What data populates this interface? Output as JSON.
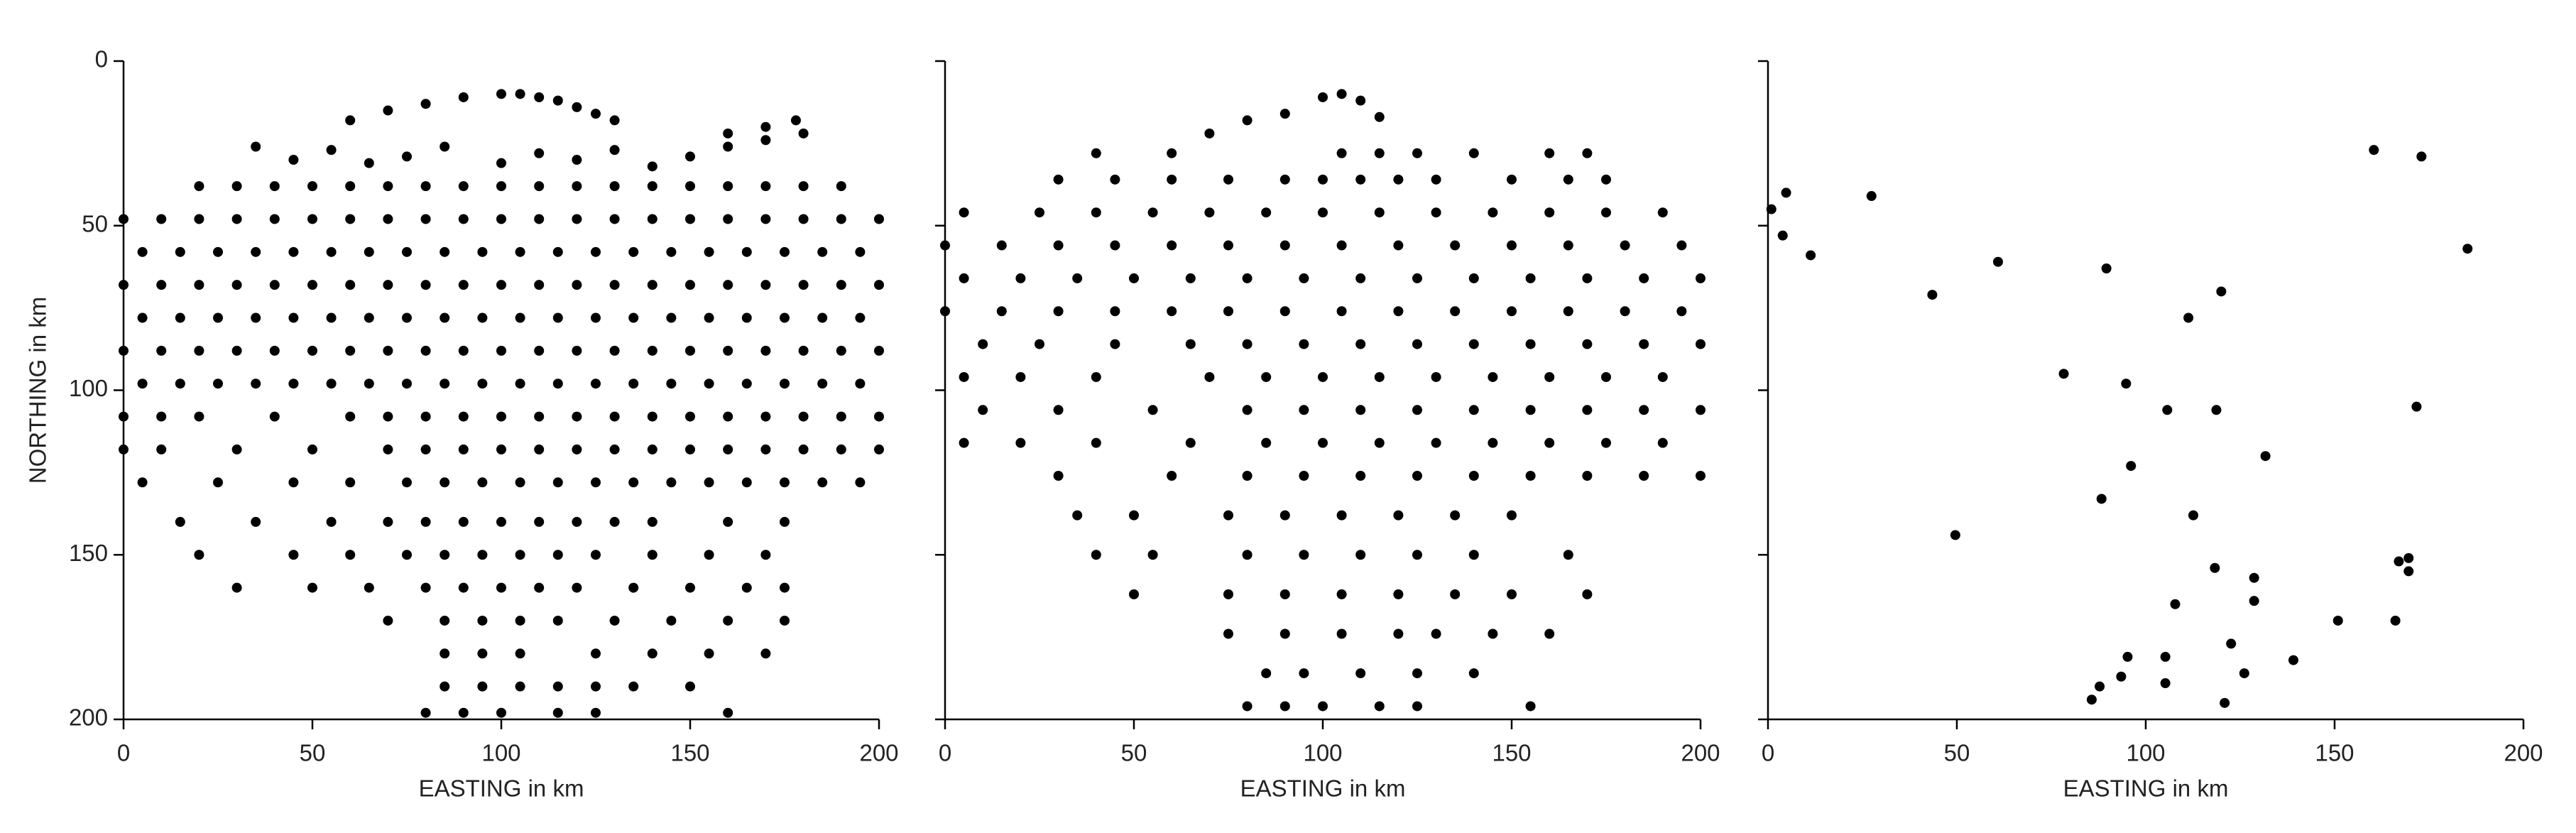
{
  "chart_data": [
    {
      "type": "scatter",
      "xlabel": "EASTING in km",
      "ylabel": "NORTHING in km",
      "color": "#000000",
      "xlim": [
        0,
        200
      ],
      "xticks": [
        0,
        50,
        100,
        150,
        200
      ],
      "ylim": [
        0,
        200
      ],
      "yticks": [
        0,
        50,
        100,
        150,
        200
      ],
      "invert_y": true,
      "show_ytick_labels": true,
      "x": [
        60,
        70,
        80,
        90,
        100,
        105,
        110,
        115,
        120,
        125,
        130,
        160,
        170,
        178,
        35,
        45,
        55,
        65,
        75,
        85,
        100,
        110,
        120,
        130,
        140,
        150,
        160,
        170,
        180,
        20,
        30,
        40,
        50,
        60,
        70,
        80,
        90,
        100,
        110,
        120,
        130,
        140,
        150,
        160,
        170,
        180,
        190,
        0,
        10,
        20,
        30,
        40,
        50,
        60,
        70,
        80,
        90,
        100,
        110,
        120,
        130,
        140,
        150,
        160,
        170,
        180,
        190,
        200,
        5,
        15,
        25,
        35,
        45,
        55,
        65,
        75,
        85,
        95,
        105,
        115,
        125,
        135,
        145,
        155,
        165,
        175,
        185,
        195,
        0,
        10,
        20,
        30,
        40,
        50,
        60,
        70,
        80,
        90,
        100,
        110,
        120,
        130,
        140,
        150,
        160,
        170,
        180,
        190,
        200,
        5,
        15,
        25,
        35,
        45,
        55,
        65,
        75,
        85,
        95,
        105,
        115,
        125,
        135,
        145,
        155,
        165,
        175,
        185,
        195,
        0,
        10,
        20,
        30,
        40,
        50,
        60,
        70,
        80,
        90,
        100,
        110,
        120,
        130,
        140,
        150,
        160,
        170,
        180,
        190,
        200,
        5,
        15,
        25,
        35,
        45,
        55,
        65,
        75,
        85,
        95,
        105,
        115,
        125,
        135,
        145,
        155,
        165,
        175,
        185,
        195,
        0,
        10,
        20,
        40,
        60,
        70,
        80,
        90,
        100,
        110,
        120,
        130,
        140,
        150,
        160,
        170,
        180,
        190,
        200,
        0,
        10,
        30,
        50,
        70,
        80,
        90,
        100,
        110,
        120,
        130,
        140,
        150,
        160,
        170,
        180,
        190,
        200,
        5,
        25,
        45,
        60,
        75,
        85,
        95,
        105,
        115,
        125,
        135,
        145,
        155,
        165,
        175,
        185,
        195,
        15,
        35,
        55,
        70,
        80,
        90,
        100,
        110,
        120,
        130,
        140,
        160,
        175,
        20,
        45,
        60,
        75,
        85,
        95,
        105,
        115,
        125,
        140,
        155,
        170,
        30,
        50,
        65,
        80,
        90,
        100,
        110,
        120,
        135,
        150,
        165,
        175,
        70,
        85,
        95,
        105,
        115,
        130,
        145,
        160,
        175,
        85,
        95,
        105,
        125,
        140,
        155,
        170,
        85,
        95,
        105,
        115,
        125,
        135,
        150,
        80,
        90,
        100,
        115,
        125,
        160
      ],
      "y": [
        18,
        15,
        13,
        11,
        10,
        10,
        11,
        12,
        14,
        16,
        18,
        22,
        20,
        18,
        26,
        30,
        27,
        31,
        29,
        26,
        31,
        28,
        30,
        27,
        32,
        29,
        26,
        24,
        22,
        38,
        38,
        38,
        38,
        38,
        38,
        38,
        38,
        38,
        38,
        38,
        38,
        38,
        38,
        38,
        38,
        38,
        38,
        48,
        48,
        48,
        48,
        48,
        48,
        48,
        48,
        48,
        48,
        48,
        48,
        48,
        48,
        48,
        48,
        48,
        48,
        48,
        48,
        48,
        58,
        58,
        58,
        58,
        58,
        58,
        58,
        58,
        58,
        58,
        58,
        58,
        58,
        58,
        58,
        58,
        58,
        58,
        58,
        58,
        68,
        68,
        68,
        68,
        68,
        68,
        68,
        68,
        68,
        68,
        68,
        68,
        68,
        68,
        68,
        68,
        68,
        68,
        68,
        68,
        68,
        78,
        78,
        78,
        78,
        78,
        78,
        78,
        78,
        78,
        78,
        78,
        78,
        78,
        78,
        78,
        78,
        78,
        78,
        78,
        78,
        88,
        88,
        88,
        88,
        88,
        88,
        88,
        88,
        88,
        88,
        88,
        88,
        88,
        88,
        88,
        88,
        88,
        88,
        88,
        88,
        88,
        98,
        98,
        98,
        98,
        98,
        98,
        98,
        98,
        98,
        98,
        98,
        98,
        98,
        98,
        98,
        98,
        98,
        98,
        98,
        98,
        108,
        108,
        108,
        108,
        108,
        108,
        108,
        108,
        108,
        108,
        108,
        108,
        108,
        108,
        108,
        108,
        108,
        108,
        108,
        118,
        118,
        118,
        118,
        118,
        118,
        118,
        118,
        118,
        118,
        118,
        118,
        118,
        118,
        118,
        118,
        118,
        118,
        128,
        128,
        128,
        128,
        128,
        128,
        128,
        128,
        128,
        128,
        128,
        128,
        128,
        128,
        128,
        128,
        128,
        140,
        140,
        140,
        140,
        140,
        140,
        140,
        140,
        140,
        140,
        140,
        140,
        140,
        150,
        150,
        150,
        150,
        150,
        150,
        150,
        150,
        150,
        150,
        150,
        150,
        160,
        160,
        160,
        160,
        160,
        160,
        160,
        160,
        160,
        160,
        160,
        160,
        170,
        170,
        170,
        170,
        170,
        170,
        170,
        170,
        170,
        180,
        180,
        180,
        180,
        180,
        180,
        180,
        190,
        190,
        190,
        190,
        190,
        190,
        190,
        198,
        198,
        198,
        198,
        198,
        198
      ]
    },
    {
      "type": "scatter",
      "xlabel": "EASTING in km",
      "color": "#000000",
      "xlim": [
        0,
        200
      ],
      "xticks": [
        0,
        50,
        100,
        150,
        200
      ],
      "ylim": [
        0,
        200
      ],
      "yticks": [
        0,
        50,
        100,
        150,
        200
      ],
      "invert_y": true,
      "show_ytick_labels": false,
      "x": [
        100,
        105,
        110,
        70,
        80,
        90,
        115,
        40,
        60,
        105,
        115,
        125,
        140,
        160,
        170,
        30,
        45,
        60,
        75,
        90,
        100,
        110,
        120,
        130,
        150,
        165,
        175,
        5,
        25,
        40,
        55,
        70,
        85,
        100,
        115,
        130,
        145,
        160,
        175,
        190,
        0,
        15,
        30,
        45,
        60,
        75,
        90,
        105,
        120,
        135,
        150,
        165,
        180,
        195,
        5,
        20,
        35,
        50,
        65,
        80,
        95,
        110,
        125,
        140,
        155,
        170,
        185,
        200,
        0,
        15,
        30,
        45,
        60,
        75,
        90,
        105,
        120,
        135,
        150,
        165,
        180,
        195,
        10,
        25,
        45,
        65,
        80,
        95,
        110,
        125,
        140,
        155,
        170,
        185,
        200,
        5,
        20,
        40,
        70,
        85,
        100,
        115,
        130,
        145,
        160,
        175,
        190,
        10,
        30,
        55,
        80,
        95,
        110,
        125,
        140,
        155,
        170,
        185,
        200,
        5,
        20,
        40,
        65,
        85,
        100,
        115,
        130,
        145,
        160,
        175,
        190,
        30,
        60,
        80,
        95,
        110,
        125,
        140,
        155,
        170,
        185,
        200,
        35,
        50,
        75,
        90,
        105,
        120,
        135,
        150,
        40,
        55,
        80,
        95,
        110,
        125,
        140,
        165,
        50,
        75,
        90,
        105,
        120,
        135,
        150,
        170,
        75,
        90,
        105,
        120,
        130,
        145,
        160,
        85,
        95,
        110,
        125,
        140,
        80,
        90,
        100,
        115,
        125,
        155
      ],
      "y": [
        11,
        10,
        12,
        22,
        18,
        16,
        17,
        28,
        28,
        28,
        28,
        28,
        28,
        28,
        28,
        36,
        36,
        36,
        36,
        36,
        36,
        36,
        36,
        36,
        36,
        36,
        36,
        46,
        46,
        46,
        46,
        46,
        46,
        46,
        46,
        46,
        46,
        46,
        46,
        46,
        56,
        56,
        56,
        56,
        56,
        56,
        56,
        56,
        56,
        56,
        56,
        56,
        56,
        56,
        66,
        66,
        66,
        66,
        66,
        66,
        66,
        66,
        66,
        66,
        66,
        66,
        66,
        66,
        76,
        76,
        76,
        76,
        76,
        76,
        76,
        76,
        76,
        76,
        76,
        76,
        76,
        76,
        86,
        86,
        86,
        86,
        86,
        86,
        86,
        86,
        86,
        86,
        86,
        86,
        86,
        96,
        96,
        96,
        96,
        96,
        96,
        96,
        96,
        96,
        96,
        96,
        96,
        106,
        106,
        106,
        106,
        106,
        106,
        106,
        106,
        106,
        106,
        106,
        106,
        116,
        116,
        116,
        116,
        116,
        116,
        116,
        116,
        116,
        116,
        116,
        116,
        126,
        126,
        126,
        126,
        126,
        126,
        126,
        126,
        126,
        126,
        126,
        138,
        138,
        138,
        138,
        138,
        138,
        138,
        138,
        150,
        150,
        150,
        150,
        150,
        150,
        150,
        150,
        162,
        162,
        162,
        162,
        162,
        162,
        162,
        162,
        174,
        174,
        174,
        174,
        174,
        174,
        174,
        186,
        186,
        186,
        186,
        186,
        196,
        196,
        196,
        196,
        196,
        196
      ]
    },
    {
      "type": "scatter",
      "xlabel": "EASTING in km",
      "color": "#000000",
      "xlim": [
        0,
        200
      ],
      "xticks": [
        0,
        50,
        100,
        150,
        200
      ],
      "ylim": [
        0,
        200
      ],
      "yticks": [
        0,
        50,
        100,
        150,
        200
      ],
      "invert_y": true,
      "show_ytick_labels": false,
      "x": [
        0.9,
        4.8,
        3.9,
        11.3,
        27.4,
        43.5,
        60.9,
        89.6,
        120,
        111.3,
        160.4,
        173,
        185.2,
        78.3,
        94.8,
        105.7,
        118.7,
        171.7,
        96.1,
        131.7,
        88.3,
        112.6,
        49.6,
        118.3,
        128.7,
        128.7,
        150.9,
        166.1,
        167,
        169.6,
        169.6,
        107.8,
        122.6,
        126.1,
        139.1,
        95.2,
        105.2,
        93.5,
        105.2,
        87.8,
        85.7,
        120.9
      ],
      "y": [
        45,
        40,
        53,
        59,
        41,
        71,
        61,
        63,
        70,
        78,
        27,
        29,
        57,
        95,
        98,
        106,
        106,
        105,
        123,
        120,
        133,
        138,
        144,
        154,
        157,
        164,
        170,
        170,
        152,
        155,
        151,
        165,
        177,
        186,
        182,
        181,
        181,
        187,
        189,
        190,
        194,
        195
      ]
    }
  ]
}
